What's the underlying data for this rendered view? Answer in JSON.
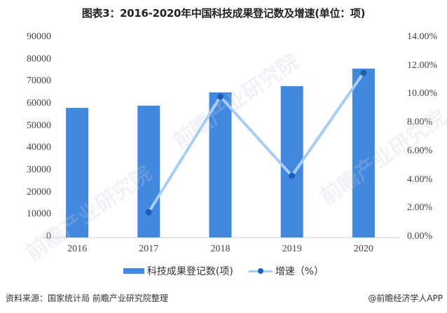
{
  "title": "图表3：2016-2020年中国科技成果登记数及增速(单位：项)",
  "chart_data": {
    "type": "bar+line",
    "title": "图表3：2016-2020年中国科技成果登记数及增速(单位：项)",
    "categories": [
      "2016",
      "2017",
      "2018",
      "2019",
      "2020"
    ],
    "series": [
      {
        "name": "科技成果登记数(项)",
        "type": "bar",
        "axis": "left",
        "color": "#4288de",
        "values": [
          58400,
          59400,
          65400,
          68200,
          76100
        ]
      },
      {
        "name": "增速（%）",
        "type": "line",
        "axis": "right",
        "color": "#a8cdf4",
        "marker_color": "#1d5fb8",
        "values": [
          null,
          1.77,
          9.87,
          4.32,
          11.54
        ]
      }
    ],
    "y_left": {
      "min": 0,
      "max": 90000,
      "ticks": [
        "0",
        "10000",
        "20000",
        "30000",
        "40000",
        "50000",
        "60000",
        "70000",
        "80000",
        "90000"
      ]
    },
    "y_right": {
      "min": 0,
      "max": 14,
      "ticks": [
        "0.00%",
        "2.00%",
        "4.00%",
        "6.00%",
        "8.00%",
        "10.00%",
        "12.00%",
        "14.00%"
      ]
    },
    "xlabel": "",
    "ylabel": "",
    "grid": false,
    "legend_position": "bottom"
  },
  "legend": {
    "bar_label": "科技成果登记数(项)",
    "line_label": "增速（%）"
  },
  "footer": {
    "source": "资料来源：国家统计局 前瞻产业研究院整理",
    "brand": "@前瞻经济学人APP"
  },
  "watermark": "前瞻产业研究院"
}
